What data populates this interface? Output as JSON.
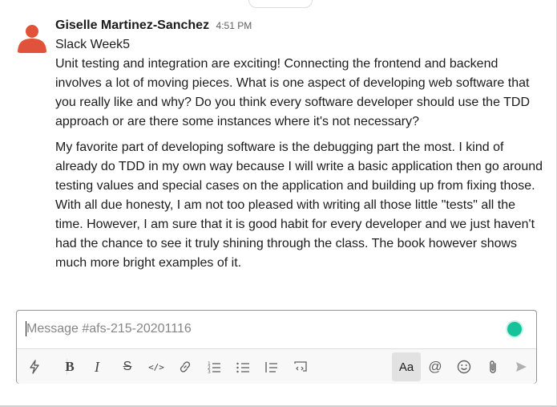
{
  "message": {
    "author": "Giselle Martinez-Sanchez",
    "timestamp": "4:51 PM",
    "subject": "Slack Week5",
    "paragraph1": "Unit testing and integration are exciting! Connecting the frontend and backend involves a lot of moving pieces. What is one aspect of developing web software that you really like and why? Do you think every software developer should use the TDD approach or are there some instances where it's not necessary?",
    "paragraph2": "My favorite part of developing software is the debugging part the most. I kind of already do TDD in my own way because I will write a basic application then go around testing values and special cases on the application and building up from fixing those.",
    "paragraph3": "With all due honesty, I am not too pleased with writing all those little \"tests\" all the time. However, I am sure that it is good habit for every developer and we just haven't had the chance to see it truly shining through the class. The book however shows much more bright examples of it.",
    "avatar_color": "#e0533a"
  },
  "composer": {
    "placeholder": "Message #afs-215-20201116",
    "value": ""
  },
  "toolbar": {
    "shortcuts_icon": "lightning-icon",
    "bold_label": "B",
    "italic_label": "I",
    "strike_label": "S",
    "code_label": "</>",
    "link_icon": "link-icon",
    "ordered_list_icon": "ordered-list-icon",
    "bulleted_list_icon": "bulleted-list-icon",
    "blockquote_icon": "blockquote-icon",
    "code_block_icon": "code-block-icon",
    "formatting_label": "Aa",
    "mention_label": "@",
    "emoji_icon": "emoji-icon",
    "attach_icon": "paperclip-icon",
    "send_icon": "send-icon"
  }
}
